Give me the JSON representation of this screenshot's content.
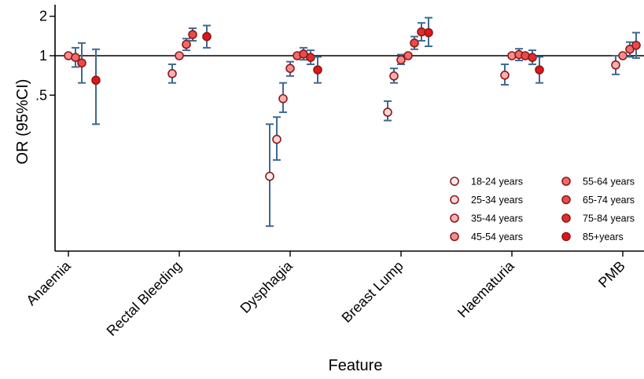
{
  "chart_data": {
    "type": "scatter",
    "title": "",
    "xlabel": "Feature",
    "ylabel": "OR (95%CI)",
    "y_scale": "log",
    "y_ticks": [
      {
        "value": 2,
        "label": "2"
      },
      {
        "value": 1,
        "label": "1"
      },
      {
        "value": 0.5,
        "label": ".5"
      }
    ],
    "reference_line": 1,
    "grid": false,
    "legend_position": "bottom-right",
    "categories": [
      "Anaemia",
      "Rectal Bleeding",
      "Dysphagia",
      "Breast Lump",
      "Haematuria",
      "PMB"
    ],
    "series": [
      {
        "name": "18-24 years",
        "color": "#fef0f0",
        "points": [
          {
            "category": "Anaemia",
            "or": null,
            "lo": null,
            "hi": null
          },
          {
            "category": "Rectal Bleeding",
            "or": null,
            "lo": null,
            "hi": null
          },
          {
            "category": "Dysphagia",
            "or": 0.12,
            "lo": 0.05,
            "hi": 0.3
          },
          {
            "category": "Breast Lump",
            "or": null,
            "lo": null,
            "hi": null
          },
          {
            "category": "Haematuria",
            "or": null,
            "lo": null,
            "hi": null
          },
          {
            "category": "PMB",
            "or": null,
            "lo": null,
            "hi": null
          }
        ]
      },
      {
        "name": "25-34 years",
        "color": "#fcd6d6",
        "points": [
          {
            "category": "Anaemia",
            "or": null,
            "lo": null,
            "hi": null
          },
          {
            "category": "Rectal Bleeding",
            "or": null,
            "lo": null,
            "hi": null
          },
          {
            "category": "Dysphagia",
            "or": 0.23,
            "lo": 0.16,
            "hi": 0.34
          },
          {
            "category": "Breast Lump",
            "or": 0.37,
            "lo": 0.32,
            "hi": 0.45
          },
          {
            "category": "Haematuria",
            "or": null,
            "lo": null,
            "hi": null
          },
          {
            "category": "PMB",
            "or": null,
            "lo": null,
            "hi": null
          }
        ]
      },
      {
        "name": "35-44 years",
        "color": "#f9b0b0",
        "points": [
          {
            "category": "Anaemia",
            "or": null,
            "lo": null,
            "hi": null
          },
          {
            "category": "Rectal Bleeding",
            "or": 0.73,
            "lo": 0.62,
            "hi": 0.86
          },
          {
            "category": "Dysphagia",
            "or": 0.47,
            "lo": 0.37,
            "hi": 0.62
          },
          {
            "category": "Breast Lump",
            "or": 0.7,
            "lo": 0.62,
            "hi": 0.8
          },
          {
            "category": "Haematuria",
            "or": 0.71,
            "lo": 0.6,
            "hi": 0.86
          },
          {
            "category": "PMB",
            "or": 0.85,
            "lo": 0.72,
            "hi": 1.0
          }
        ]
      },
      {
        "name": "45-54 years",
        "color": "#f68d8d",
        "points": [
          {
            "category": "Anaemia",
            "or": 1.0,
            "lo": 1.0,
            "hi": 1.0
          },
          {
            "category": "Rectal Bleeding",
            "or": 1.0,
            "lo": 1.0,
            "hi": 1.0
          },
          {
            "category": "Dysphagia",
            "or": 0.8,
            "lo": 0.7,
            "hi": 0.9
          },
          {
            "category": "Breast Lump",
            "or": 0.93,
            "lo": 0.86,
            "hi": 1.02
          },
          {
            "category": "Haematuria",
            "or": 1.0,
            "lo": 1.0,
            "hi": 1.0
          },
          {
            "category": "PMB",
            "or": 1.0,
            "lo": 1.0,
            "hi": 1.0
          }
        ]
      },
      {
        "name": "55-64 years",
        "color": "#f26b6b",
        "points": [
          {
            "category": "Anaemia",
            "or": 0.97,
            "lo": 0.82,
            "hi": 1.15
          },
          {
            "category": "Rectal Bleeding",
            "or": 1.22,
            "lo": 1.1,
            "hi": 1.35
          },
          {
            "category": "Dysphagia",
            "or": 1.0,
            "lo": 1.0,
            "hi": 1.0
          },
          {
            "category": "Breast Lump",
            "or": 1.0,
            "lo": 1.0,
            "hi": 1.0
          },
          {
            "category": "Haematuria",
            "or": 1.02,
            "lo": 0.92,
            "hi": 1.13
          },
          {
            "category": "PMB",
            "or": 1.12,
            "lo": 0.98,
            "hi": 1.27
          }
        ]
      },
      {
        "name": "65-74 years",
        "color": "#ec4a4a",
        "points": [
          {
            "category": "Anaemia",
            "or": 0.88,
            "lo": 0.62,
            "hi": 1.25
          },
          {
            "category": "Rectal Bleeding",
            "or": 1.45,
            "lo": 1.3,
            "hi": 1.62
          },
          {
            "category": "Dysphagia",
            "or": 1.03,
            "lo": 0.93,
            "hi": 1.15
          },
          {
            "category": "Breast Lump",
            "or": 1.25,
            "lo": 1.12,
            "hi": 1.4
          },
          {
            "category": "Haematuria",
            "or": 1.0,
            "lo": 1.0,
            "hi": 1.0
          },
          {
            "category": "PMB",
            "or": 1.2,
            "lo": 0.96,
            "hi": 1.5
          }
        ]
      },
      {
        "name": "75-84 years",
        "color": "#e52b2b",
        "points": [
          {
            "category": "Anaemia",
            "or": null,
            "lo": null,
            "hi": null
          },
          {
            "category": "Rectal Bleeding",
            "or": null,
            "lo": null,
            "hi": null
          },
          {
            "category": "Dysphagia",
            "or": 0.97,
            "lo": 0.86,
            "hi": 1.1
          },
          {
            "category": "Breast Lump",
            "or": 1.52,
            "lo": 1.3,
            "hi": 1.78
          },
          {
            "category": "Haematuria",
            "or": 0.97,
            "lo": 0.86,
            "hi": 1.1
          },
          {
            "category": "PMB",
            "or": null,
            "lo": null,
            "hi": null
          }
        ]
      },
      {
        "name": "85+years",
        "color": "#e01515",
        "points": [
          {
            "category": "Anaemia",
            "or": 0.65,
            "lo": 0.3,
            "hi": 1.12
          },
          {
            "category": "Rectal Bleeding",
            "or": 1.4,
            "lo": 1.15,
            "hi": 1.7
          },
          {
            "category": "Dysphagia",
            "or": 0.78,
            "lo": 0.62,
            "hi": 0.98
          },
          {
            "category": "Breast Lump",
            "or": 1.5,
            "lo": 1.18,
            "hi": 1.95
          },
          {
            "category": "Haematuria",
            "or": 0.78,
            "lo": 0.62,
            "hi": 0.98
          },
          {
            "category": "PMB",
            "or": 1.05,
            "lo": 0.76,
            "hi": 1.5
          }
        ]
      }
    ]
  }
}
